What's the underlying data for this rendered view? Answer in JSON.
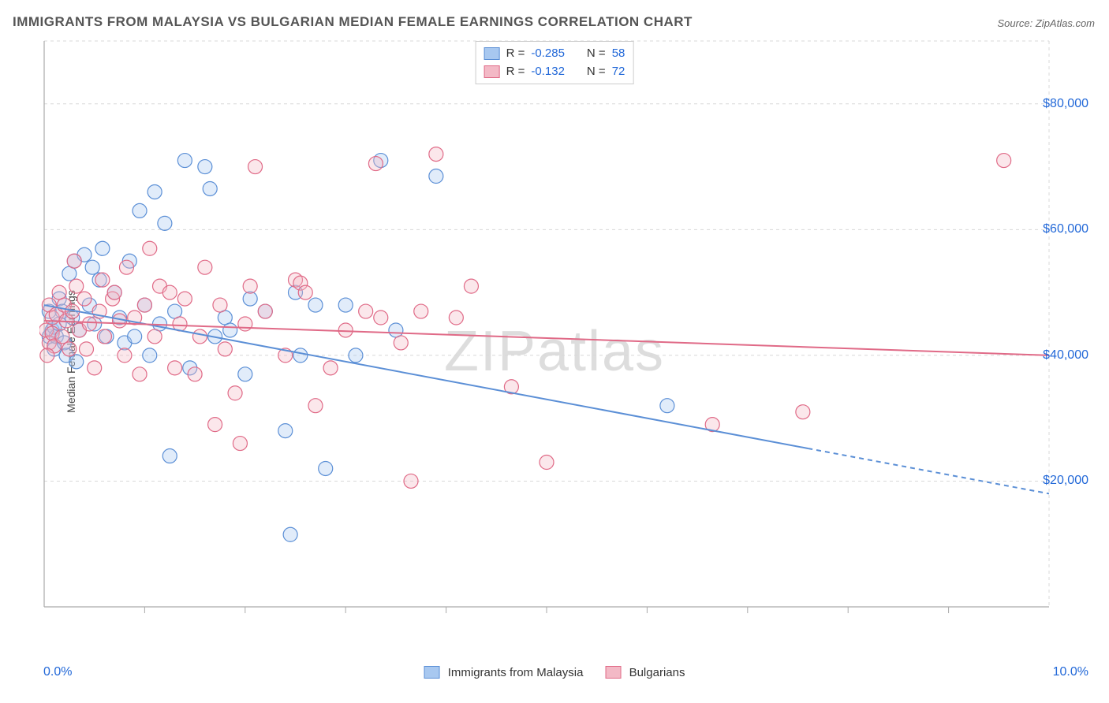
{
  "title": "IMMIGRANTS FROM MALAYSIA VS BULGARIAN MEDIAN FEMALE EARNINGS CORRELATION CHART",
  "source_label": "Source: ZipAtlas.com",
  "ylabel": "Median Female Earnings",
  "watermark": "ZIPatlas",
  "chart": {
    "type": "scatter",
    "xlim": [
      0,
      10
    ],
    "ylim": [
      0,
      90000
    ],
    "x_tick_minor_positions": [
      1,
      2,
      3,
      4,
      5,
      6,
      7,
      8,
      9
    ],
    "y_gridlines": [
      20000,
      40000,
      60000,
      80000
    ],
    "y_tick_labels": [
      "$20,000",
      "$40,000",
      "$60,000",
      "$80,000"
    ],
    "x_tick_left": "0.0%",
    "x_tick_right": "10.0%",
    "background_color": "#ffffff",
    "grid_color": "#d8d8d8",
    "axis_color": "#aaaaaa",
    "label_color_axis": "#2268d8",
    "title_fontsize": 17,
    "axis_label_fontsize": 16,
    "marker_radius": 9,
    "marker_fill_opacity": 0.35,
    "marker_stroke_width": 1.2,
    "trend_line_width": 2
  },
  "series": [
    {
      "key": "malaysia",
      "label": "Immigrants from Malaysia",
      "color_fill": "#a8c8f0",
      "color_stroke": "#5b8fd6",
      "R": "-0.285",
      "N": "58",
      "trend": {
        "x0": 0,
        "y0": 48000,
        "x1": 10,
        "y1": 18000,
        "solid_until_x": 7.6
      },
      "points": [
        [
          0.05,
          43000
        ],
        [
          0.05,
          47000
        ],
        [
          0.08,
          44000
        ],
        [
          0.1,
          41000
        ],
        [
          0.1,
          44500
        ],
        [
          0.12,
          43000
        ],
        [
          0.15,
          49000
        ],
        [
          0.15,
          45000
        ],
        [
          0.18,
          47000
        ],
        [
          0.2,
          42000
        ],
        [
          0.22,
          40000
        ],
        [
          0.25,
          53000
        ],
        [
          0.28,
          46000
        ],
        [
          0.3,
          55000
        ],
        [
          0.32,
          39000
        ],
        [
          0.35,
          44000
        ],
        [
          0.4,
          56000
        ],
        [
          0.45,
          48000
        ],
        [
          0.48,
          54000
        ],
        [
          0.5,
          45000
        ],
        [
          0.55,
          52000
        ],
        [
          0.58,
          57000
        ],
        [
          0.62,
          43000
        ],
        [
          0.7,
          50000
        ],
        [
          0.75,
          46000
        ],
        [
          0.8,
          42000
        ],
        [
          0.85,
          55000
        ],
        [
          0.9,
          43000
        ],
        [
          0.95,
          63000
        ],
        [
          1.0,
          48000
        ],
        [
          1.05,
          40000
        ],
        [
          1.1,
          66000
        ],
        [
          1.15,
          45000
        ],
        [
          1.2,
          61000
        ],
        [
          1.25,
          24000
        ],
        [
          1.3,
          47000
        ],
        [
          1.4,
          71000
        ],
        [
          1.45,
          38000
        ],
        [
          1.6,
          70000
        ],
        [
          1.65,
          66500
        ],
        [
          1.7,
          43000
        ],
        [
          1.8,
          46000
        ],
        [
          1.85,
          44000
        ],
        [
          2.0,
          37000
        ],
        [
          2.05,
          49000
        ],
        [
          2.2,
          47000
        ],
        [
          2.4,
          28000
        ],
        [
          2.45,
          11500
        ],
        [
          2.5,
          50000
        ],
        [
          2.55,
          40000
        ],
        [
          2.7,
          48000
        ],
        [
          2.8,
          22000
        ],
        [
          3.0,
          48000
        ],
        [
          3.1,
          40000
        ],
        [
          3.35,
          71000
        ],
        [
          3.5,
          44000
        ],
        [
          3.9,
          68500
        ],
        [
          6.2,
          32000
        ]
      ]
    },
    {
      "key": "bulgarians",
      "label": "Bulgarians",
      "color_fill": "#f3b9c6",
      "color_stroke": "#e06a87",
      "R": "-0.132",
      "N": "72",
      "trend": {
        "x0": 0,
        "y0": 45500,
        "x1": 10,
        "y1": 40000,
        "solid_until_x": 10
      },
      "points": [
        [
          0.02,
          44000
        ],
        [
          0.05,
          42000
        ],
        [
          0.05,
          48000
        ],
        [
          0.08,
          46000
        ],
        [
          0.08,
          43500
        ],
        [
          0.1,
          41500
        ],
        [
          0.12,
          46500
        ],
        [
          0.15,
          50000
        ],
        [
          0.18,
          43000
        ],
        [
          0.2,
          48000
        ],
        [
          0.22,
          45500
        ],
        [
          0.25,
          41000
        ],
        [
          0.28,
          47000
        ],
        [
          0.3,
          55000
        ],
        [
          0.32,
          51000
        ],
        [
          0.35,
          44000
        ],
        [
          0.4,
          49000
        ],
        [
          0.42,
          41000
        ],
        [
          0.45,
          45000
        ],
        [
          0.5,
          38000
        ],
        [
          0.55,
          47000
        ],
        [
          0.58,
          52000
        ],
        [
          0.6,
          43000
        ],
        [
          0.68,
          49000
        ],
        [
          0.7,
          50000
        ],
        [
          0.75,
          45500
        ],
        [
          0.8,
          40000
        ],
        [
          0.82,
          54000
        ],
        [
          0.9,
          46000
        ],
        [
          0.95,
          37000
        ],
        [
          1.0,
          48000
        ],
        [
          1.05,
          57000
        ],
        [
          1.1,
          43000
        ],
        [
          1.15,
          51000
        ],
        [
          1.25,
          50000
        ],
        [
          1.3,
          38000
        ],
        [
          1.35,
          45000
        ],
        [
          1.4,
          49000
        ],
        [
          1.5,
          37000
        ],
        [
          1.55,
          43000
        ],
        [
          1.6,
          54000
        ],
        [
          1.7,
          29000
        ],
        [
          1.75,
          48000
        ],
        [
          1.8,
          41000
        ],
        [
          1.9,
          34000
        ],
        [
          1.95,
          26000
        ],
        [
          2.0,
          45000
        ],
        [
          2.05,
          51000
        ],
        [
          2.1,
          70000
        ],
        [
          2.2,
          47000
        ],
        [
          2.4,
          40000
        ],
        [
          2.5,
          52000
        ],
        [
          2.55,
          51500
        ],
        [
          2.6,
          50000
        ],
        [
          2.7,
          32000
        ],
        [
          2.85,
          38000
        ],
        [
          3.0,
          44000
        ],
        [
          3.2,
          47000
        ],
        [
          3.3,
          70500
        ],
        [
          3.35,
          46000
        ],
        [
          3.55,
          42000
        ],
        [
          3.65,
          20000
        ],
        [
          3.75,
          47000
        ],
        [
          3.9,
          72000
        ],
        [
          4.1,
          46000
        ],
        [
          4.25,
          51000
        ],
        [
          4.65,
          35000
        ],
        [
          5.0,
          23000
        ],
        [
          6.65,
          29000
        ],
        [
          7.55,
          31000
        ],
        [
          9.55,
          71000
        ],
        [
          0.03,
          40000
        ]
      ]
    }
  ],
  "legend_top": {
    "R_label": "R =",
    "N_label": "N ="
  }
}
